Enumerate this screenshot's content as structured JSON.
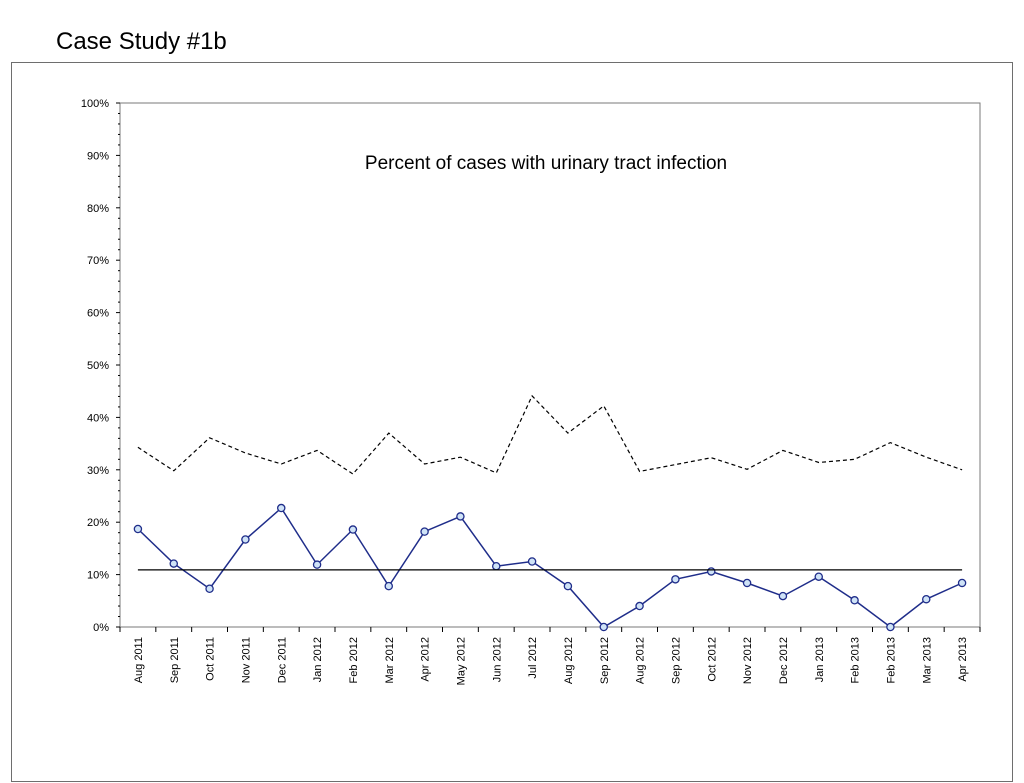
{
  "slide": {
    "title": "Case Study #1b"
  },
  "chart_data": {
    "type": "line",
    "title": "Percent of cases with urinary tract infection",
    "xlabel": "",
    "ylabel": "",
    "ylim": [
      0,
      100
    ],
    "y_ticks": [
      "0%",
      "10%",
      "20%",
      "30%",
      "40%",
      "50%",
      "60%",
      "70%",
      "80%",
      "90%",
      "100%"
    ],
    "categories": [
      "Aug 2011",
      "Sep 2011",
      "Oct 2011",
      "Nov 2011",
      "Dec 2011",
      "Jan 2012",
      "Feb 2012",
      "Mar 2012",
      "Apr 2012",
      "May 2012",
      "Jun 2012",
      "Jul 2012",
      "Aug 2012",
      "Sep 2012",
      "Aug 2012",
      "Sep 2012",
      "Oct 2012",
      "Nov 2012",
      "Dec 2012",
      "Jan 2013",
      "Feb 2013",
      "Feb 2013",
      "Mar 2013",
      "Apr 2013"
    ],
    "series": [
      {
        "values": [
          18.7,
          12.1,
          7.3,
          16.7,
          22.7,
          11.9,
          18.6,
          7.8,
          18.2,
          21.1,
          11.6,
          12.5,
          7.8,
          0,
          4.0,
          9.1,
          10.6,
          8.4,
          5.9,
          9.6,
          5.1,
          0,
          5.3,
          8.4
        ],
        "style": "solid-markers",
        "color": "#1f2d8a"
      },
      {
        "values": [
          34.3,
          29.8,
          36.1,
          33.2,
          31.1,
          33.7,
          29.2,
          37.0,
          31.1,
          32.4,
          29.4,
          44.1,
          37.0,
          42.2,
          29.7,
          31.0,
          32.3,
          30.1,
          33.7,
          31.4,
          32.0,
          35.2,
          32.4,
          30.0
        ],
        "style": "dashed",
        "color": "#000000"
      },
      {
        "values": [
          10.9,
          10.9,
          10.9,
          10.9,
          10.9,
          10.9,
          10.9,
          10.9,
          10.9,
          10.9,
          10.9,
          10.9,
          10.9,
          10.9,
          10.9,
          10.9,
          10.9,
          10.9,
          10.9,
          10.9,
          10.9,
          10.9,
          10.9,
          10.9
        ],
        "style": "solid",
        "color": "#000000"
      }
    ],
    "grid": false,
    "legend": "none"
  }
}
